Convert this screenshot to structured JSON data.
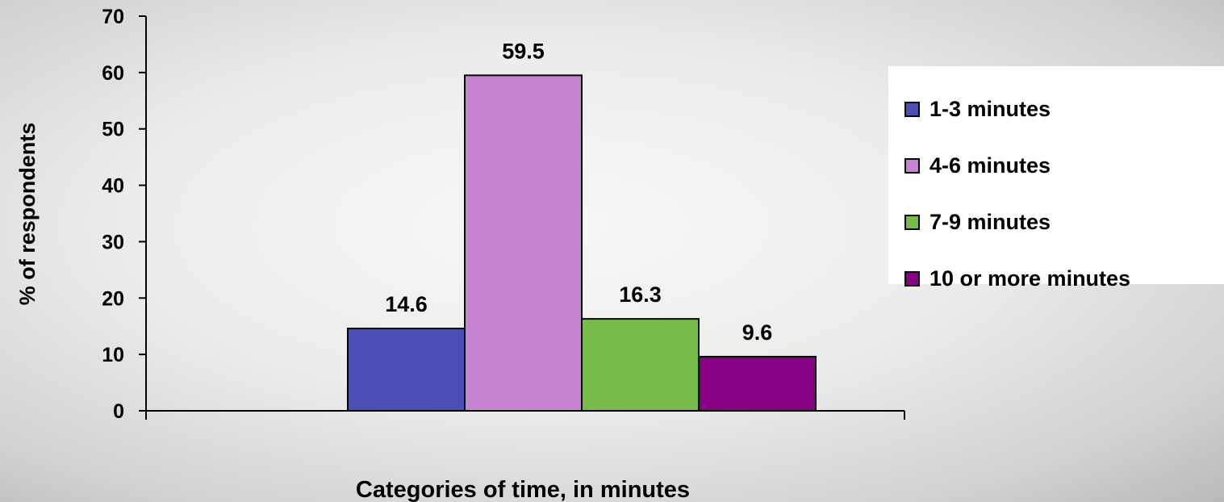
{
  "chart_data": {
    "type": "bar",
    "title": "",
    "xlabel": "Categories of time, in minutes",
    "ylabel": "% of respondents",
    "ylim": [
      0,
      70
    ],
    "yticks": [
      0,
      10,
      20,
      30,
      40,
      50,
      60,
      70
    ],
    "series": [
      {
        "name": "1-3 minutes",
        "values": [
          14.6
        ],
        "color": "#4b4fb4",
        "label": "14.6"
      },
      {
        "name": "4-6 minutes",
        "values": [
          59.5
        ],
        "color": "#c683cf",
        "label": "59.5"
      },
      {
        "name": "7-9 minutes",
        "values": [
          16.3
        ],
        "color": "#77bc4b",
        "label": "16.3"
      },
      {
        "name": "10 or more minutes",
        "values": [
          9.6
        ],
        "color": "#870082",
        "label": "9.6"
      }
    ],
    "legend": "right",
    "grid": false
  }
}
